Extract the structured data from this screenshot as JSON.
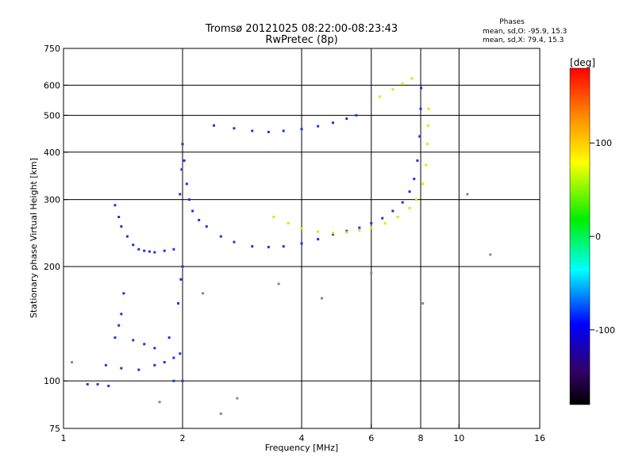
{
  "chart_data": {
    "type": "scatter",
    "title": "Tromsø 20121025 08:22:00-08:23:43",
    "subtitle": "RwPretec (8p)",
    "xlabel": "Frequency [MHz]",
    "ylabel": "Stationary phase Virtual Height [km]",
    "x_scale": "log",
    "y_scale": "log",
    "xlim": [
      1,
      16
    ],
    "ylim": [
      75,
      750
    ],
    "x_ticks": [
      1,
      2,
      4,
      6,
      8,
      10,
      16
    ],
    "y_ticks": [
      75,
      100,
      200,
      300,
      400,
      500,
      600,
      750
    ],
    "grid_x": [
      2,
      4,
      6,
      8,
      10
    ],
    "grid_y": [
      100,
      200,
      300,
      400,
      500,
      600
    ],
    "phase_legend": {
      "title": "Phases",
      "line_o": "mean, sd,O: -95.9, 15.3",
      "line_x": "mean, sd,X:  79.4, 15.3"
    },
    "colorbar": {
      "unit": "[deg]",
      "range": [
        -180,
        180
      ],
      "ticks": [
        100,
        0,
        -100
      ],
      "colors": [
        "#ff0000",
        "#ff8800",
        "#ffff00",
        "#00ee00",
        "#00ffff",
        "#0000ff",
        "#330066",
        "#000000"
      ]
    },
    "series": [
      {
        "name": "O",
        "color": "#2233dd",
        "points": [
          [
            1.35,
            290
          ],
          [
            1.38,
            270
          ],
          [
            1.4,
            255
          ],
          [
            1.45,
            240
          ],
          [
            1.5,
            228
          ],
          [
            1.55,
            222
          ],
          [
            1.6,
            220
          ],
          [
            1.65,
            219
          ],
          [
            1.7,
            218
          ],
          [
            1.8,
            220
          ],
          [
            1.9,
            222
          ],
          [
            1.97,
            310
          ],
          [
            1.99,
            360
          ],
          [
            2.0,
            420
          ],
          [
            2.02,
            380
          ],
          [
            2.05,
            330
          ],
          [
            2.08,
            300
          ],
          [
            2.12,
            280
          ],
          [
            2.2,
            265
          ],
          [
            2.3,
            255
          ],
          [
            2.5,
            240
          ],
          [
            2.7,
            232
          ],
          [
            3.0,
            226
          ],
          [
            3.3,
            225
          ],
          [
            3.6,
            226
          ],
          [
            4.0,
            230
          ],
          [
            4.4,
            236
          ],
          [
            4.8,
            243
          ],
          [
            5.2,
            248
          ],
          [
            5.6,
            253
          ],
          [
            6.0,
            260
          ],
          [
            6.4,
            268
          ],
          [
            6.8,
            280
          ],
          [
            7.2,
            295
          ],
          [
            7.5,
            315
          ],
          [
            7.7,
            340
          ],
          [
            7.85,
            380
          ],
          [
            7.95,
            440
          ],
          [
            8.0,
            520
          ],
          [
            8.02,
            590
          ],
          [
            2.4,
            470
          ],
          [
            2.7,
            462
          ],
          [
            3.0,
            455
          ],
          [
            3.3,
            452
          ],
          [
            3.6,
            455
          ],
          [
            4.0,
            460
          ],
          [
            4.4,
            468
          ],
          [
            4.8,
            478
          ],
          [
            5.2,
            490
          ],
          [
            5.5,
            500
          ],
          [
            1.28,
            110
          ],
          [
            1.4,
            108
          ],
          [
            1.55,
            107
          ],
          [
            1.7,
            110
          ],
          [
            1.8,
            112
          ],
          [
            1.9,
            115
          ],
          [
            1.97,
            118
          ],
          [
            1.35,
            130
          ],
          [
            1.5,
            128
          ],
          [
            1.6,
            125
          ],
          [
            1.7,
            122
          ],
          [
            1.85,
            130
          ],
          [
            1.95,
            160
          ],
          [
            1.98,
            185
          ],
          [
            2.0,
            200
          ],
          [
            1.15,
            98
          ],
          [
            1.22,
            98
          ],
          [
            1.3,
            97
          ],
          [
            1.9,
            100
          ],
          [
            2.0,
            100
          ],
          [
            1.42,
            170
          ],
          [
            1.4,
            150
          ],
          [
            1.38,
            140
          ]
        ]
      },
      {
        "name": "X",
        "color": "#ccee00",
        "points": [
          [
            3.4,
            270
          ],
          [
            3.7,
            260
          ],
          [
            4.0,
            252
          ],
          [
            4.4,
            247
          ],
          [
            4.8,
            245
          ],
          [
            5.2,
            246
          ],
          [
            5.6,
            249
          ],
          [
            6.0,
            253
          ],
          [
            6.5,
            260
          ],
          [
            7.0,
            270
          ],
          [
            7.5,
            285
          ],
          [
            7.8,
            300
          ],
          [
            8.1,
            330
          ],
          [
            8.25,
            370
          ],
          [
            8.32,
            420
          ],
          [
            8.36,
            470
          ],
          [
            8.38,
            520
          ],
          [
            6.3,
            560
          ],
          [
            6.8,
            585
          ],
          [
            7.2,
            605
          ],
          [
            7.6,
            625
          ]
        ]
      },
      {
        "name": "scatter",
        "color": "#888888",
        "points": [
          [
            1.05,
            112
          ],
          [
            2.75,
            90
          ],
          [
            2.25,
            170
          ],
          [
            4.5,
            165
          ],
          [
            6.0,
            192
          ],
          [
            3.5,
            180
          ],
          [
            10.5,
            310
          ],
          [
            12.0,
            215
          ],
          [
            8.1,
            160
          ],
          [
            1.75,
            88
          ],
          [
            2.5,
            82
          ]
        ]
      }
    ]
  }
}
